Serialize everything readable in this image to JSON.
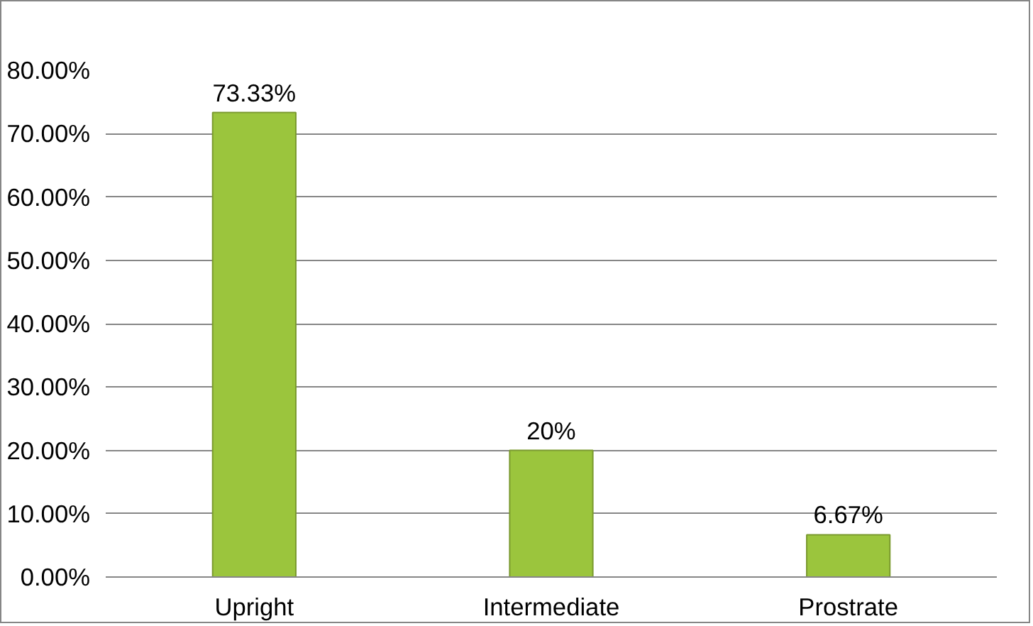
{
  "chart_data": {
    "type": "bar",
    "categories": [
      "Upright",
      "Intermediate",
      "Prostrate"
    ],
    "values": [
      73.33,
      20,
      6.67
    ],
    "color": "#9bc53d",
    "value_labels": [
      "73.33%",
      "20%",
      "6.67%"
    ],
    "ylim": [
      0,
      80
    ],
    "yticks": [
      {
        "value": 0,
        "label": "0.00%"
      },
      {
        "value": 10,
        "label": "10.00%"
      },
      {
        "value": 20,
        "label": "20.00%"
      },
      {
        "value": 30,
        "label": "30.00%"
      },
      {
        "value": 40,
        "label": "40.00%"
      },
      {
        "value": 50,
        "label": "50.00%"
      },
      {
        "value": 60,
        "label": "60.00%"
      },
      {
        "value": 70,
        "label": "70.00%"
      },
      {
        "value": 80,
        "label": "80.00%"
      }
    ],
    "grid": "y"
  }
}
